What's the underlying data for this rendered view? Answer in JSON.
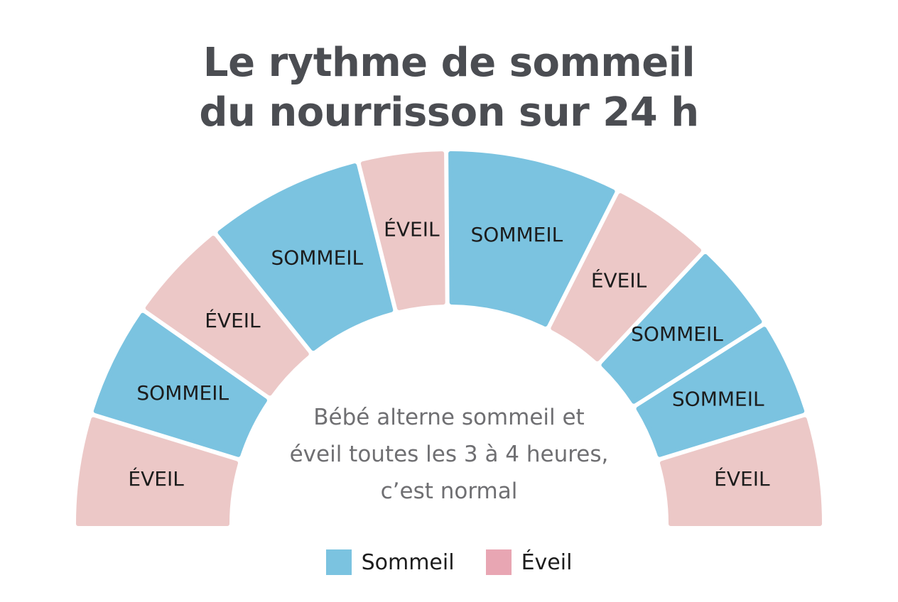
{
  "title": {
    "line1": "Le rythme de sommeil",
    "line2": "du nourrisson sur 24 h"
  },
  "colors": {
    "sleep": "#7bc3e0",
    "wake": "#ecc8c7",
    "legend_wake": "#e8a6b3",
    "title": "#4b4d52",
    "center_text": "#6f6f72"
  },
  "segments": [
    {
      "label": "ÉVEIL",
      "type": "wake",
      "share": 1.0
    },
    {
      "label": "SOMMEIL",
      "type": "sleep",
      "share": 1.05
    },
    {
      "label": "ÉVEIL",
      "type": "wake",
      "share": 0.95
    },
    {
      "label": "SOMMEIL",
      "type": "sleep",
      "share": 1.45
    },
    {
      "label": "ÉVEIL",
      "type": "wake",
      "share": 0.8
    },
    {
      "label": "SOMMEIL",
      "type": "sleep",
      "share": 1.6
    },
    {
      "label": "ÉVEIL",
      "type": "wake",
      "share": 0.95
    },
    {
      "label": "SOMMEIL",
      "type": "sleep",
      "share": 0.85
    },
    {
      "label": "SOMMEIL",
      "type": "sleep",
      "share": 0.9
    },
    {
      "label": "ÉVEIL",
      "type": "wake",
      "share": 1.0
    }
  ],
  "center_text": {
    "line1": "Bébé alterne sommeil et",
    "line2": "éveil toutes les 3 à 4 heures,",
    "line3": "c’est normal"
  },
  "legend": [
    {
      "label": "Sommeil",
      "type": "sleep"
    },
    {
      "label": "Éveil",
      "type": "wake"
    }
  ]
}
